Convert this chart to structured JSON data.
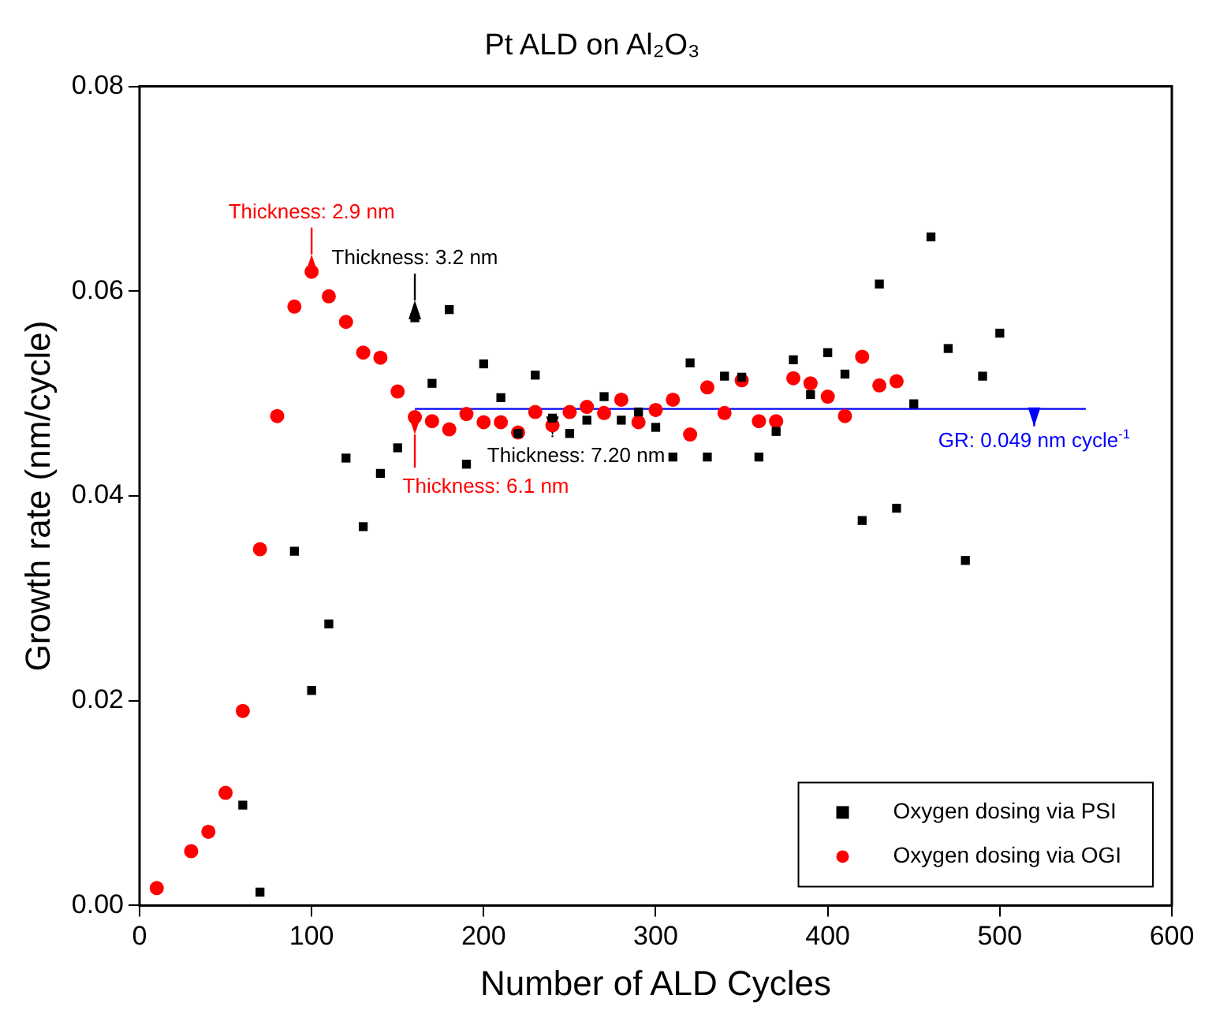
{
  "chart_data": {
    "type": "scatter",
    "title": "Pt ALD on Al₂O₃",
    "xlabel": "Number of ALD Cycles",
    "ylabel": "Growth rate (nm/cycle)",
    "xlim": [
      0,
      600
    ],
    "xticks": [
      0,
      100,
      200,
      300,
      400,
      500,
      600
    ],
    "ylim": [
      0,
      0.08
    ],
    "yticks": [
      {
        "value": 0,
        "label": "0.00"
      },
      0.02,
      0.04,
      0.06,
      0.08
    ],
    "grid": false,
    "legend": "bottom right",
    "series": [
      {
        "name": "Oxygen dosing via PSI",
        "color": "#000000",
        "marker": "square",
        "x": [
          60,
          70,
          90,
          100,
          110,
          120,
          130,
          140,
          150,
          160,
          170,
          180,
          190,
          200,
          210,
          220,
          230,
          240,
          250,
          260,
          270,
          280,
          290,
          300,
          310,
          320,
          330,
          340,
          350,
          360,
          370,
          380,
          390,
          400,
          410,
          420,
          430,
          440,
          450,
          460,
          470,
          480,
          490,
          500
        ],
        "values": [
          0.0098,
          0.0013,
          0.0346,
          0.021,
          0.0275,
          0.0437,
          0.037,
          0.0422,
          0.0447,
          0.0574,
          0.051,
          0.0582,
          0.0431,
          0.0529,
          0.0496,
          0.0461,
          0.0518,
          0.0476,
          0.0461,
          0.0474,
          0.0497,
          0.0474,
          0.0482,
          0.0467,
          0.0438,
          0.053,
          0.0438,
          0.0517,
          0.0516,
          0.0438,
          0.0463,
          0.0533,
          0.0499,
          0.054,
          0.0519,
          0.0376,
          0.0607,
          0.0388,
          0.049,
          0.0653,
          0.0544,
          0.0337,
          0.0517,
          0.0559
        ]
      },
      {
        "name": "Oxygen dosing via OGI",
        "color": "#ff0000",
        "marker": "circle",
        "x": [
          10,
          30,
          40,
          50,
          60,
          70,
          80,
          90,
          100,
          110,
          120,
          130,
          140,
          150,
          160,
          170,
          180,
          190,
          200,
          210,
          220,
          230,
          240,
          250,
          260,
          270,
          280,
          290,
          300,
          310,
          320,
          330,
          340,
          350,
          360,
          370,
          380,
          390,
          400,
          410,
          420,
          430,
          440
        ],
        "values": [
          0.0017,
          0.0053,
          0.0072,
          0.011,
          0.019,
          0.0348,
          0.0478,
          0.0585,
          0.0619,
          0.0595,
          0.057,
          0.054,
          0.0535,
          0.0502,
          0.0477,
          0.0473,
          0.0465,
          0.048,
          0.0472,
          0.0472,
          0.0462,
          0.0482,
          0.0469,
          0.0482,
          0.0487,
          0.0481,
          0.0494,
          0.0472,
          0.0484,
          0.0494,
          0.046,
          0.0506,
          0.0481,
          0.0513,
          0.0473,
          0.0473,
          0.0515,
          0.051,
          0.0497,
          0.0478,
          0.0536,
          0.0508,
          0.0512
        ]
      },
      {
        "type": "line",
        "color": "#0000ff",
        "marker": "none",
        "x": [
          160,
          550
        ],
        "values": [
          0.0485,
          0.0485
        ]
      }
    ],
    "annotations": [
      {
        "text": "Thickness: 2.9 nm",
        "x": 100,
        "y": 0.0619
      },
      {
        "text": "Thickness: 3.2 nm",
        "x": 160,
        "y": 0.0574
      },
      {
        "text": "Thickness: 6.1 nm",
        "x": 160,
        "y": 0.0477
      },
      {
        "text": "Thickness: 7.20 nm",
        "x": 240,
        "y": 0.0476
      },
      {
        "text": "GR: 0.049 nm cycle$^{-1}$",
        "x": 520,
        "y": 0.0485
      }
    ]
  }
}
